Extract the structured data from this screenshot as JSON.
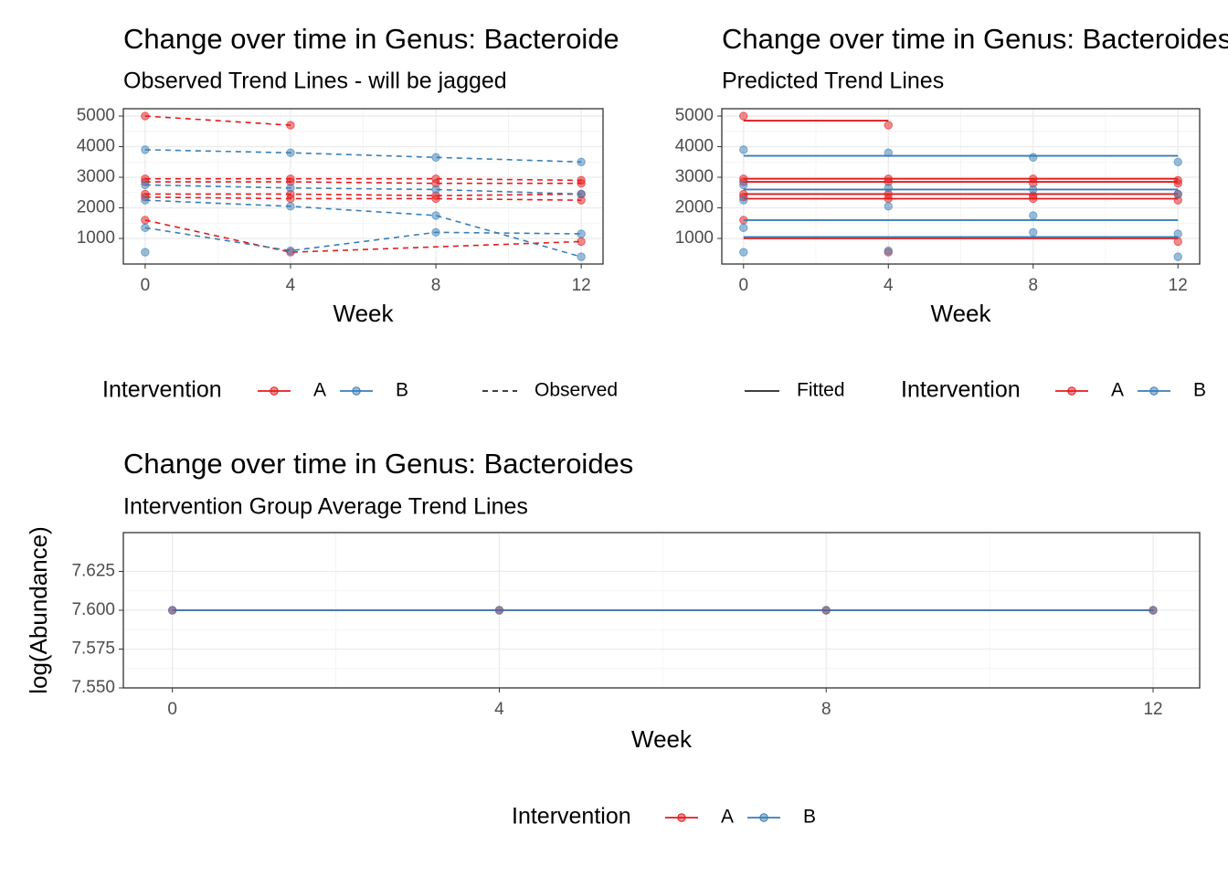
{
  "chart_data": [
    {
      "type": "line",
      "title": "Change over time in Genus: Bacteroides",
      "subtitle": "Observed Trend Lines - will be jagged",
      "xlabel": "Week",
      "legend_title": "Intervention",
      "linetype_label": "Observed",
      "linestyle": "dashed",
      "xlim": [
        -0.6,
        12.6
      ],
      "ylim": [
        165,
        5240
      ],
      "xticks": [
        0,
        4,
        8,
        12
      ],
      "yticks": [
        1000,
        2000,
        3000,
        4000,
        5000
      ],
      "grid": true,
      "series": [
        {
          "name": "A",
          "color": "#E41A1C",
          "lines": [
            {
              "x": [
                0,
                4
              ],
              "values": [
                5000,
                4700
              ]
            },
            {
              "x": [
                0,
                4,
                8,
                12
              ],
              "values": [
                2950,
                2950,
                2950,
                2900
              ]
            },
            {
              "x": [
                0,
                4,
                8,
                12
              ],
              "values": [
                2850,
                2850,
                2800,
                2800
              ]
            },
            {
              "x": [
                0,
                4,
                8,
                12
              ],
              "values": [
                2450,
                2450,
                2400,
                2450
              ]
            },
            {
              "x": [
                0,
                4,
                8,
                12
              ],
              "values": [
                2350,
                2300,
                2300,
                2250
              ]
            },
            {
              "x": [
                0,
                4,
                12
              ],
              "values": [
                1600,
                550,
                900
              ]
            }
          ]
        },
        {
          "name": "B",
          "color": "#377EB8",
          "lines": [
            {
              "x": [
                0,
                4,
                8,
                12
              ],
              "values": [
                3900,
                3800,
                3650,
                3500
              ]
            },
            {
              "x": [
                0,
                4,
                8,
                12
              ],
              "values": [
                2750,
                2650,
                2600,
                2450
              ]
            },
            {
              "x": [
                0,
                4,
                8,
                12
              ],
              "values": [
                2250,
                2050,
                1750,
                400
              ]
            },
            {
              "x": [
                0,
                4,
                8,
                12
              ],
              "values": [
                1350,
                600,
                1200,
                1150
              ]
            },
            {
              "x": [
                0
              ],
              "values": [
                550
              ]
            }
          ]
        }
      ]
    },
    {
      "type": "line",
      "title": "Change over time in Genus: Bacteroides",
      "subtitle": "Predicted Trend Lines",
      "xlabel": "Week",
      "legend_title": "Intervention",
      "linetype_label": "Fitted",
      "linestyle": "solid",
      "xlim": [
        -0.6,
        12.6
      ],
      "ylim": [
        165,
        5240
      ],
      "xticks": [
        0,
        4,
        8,
        12
      ],
      "yticks": [
        1000,
        2000,
        3000,
        4000,
        5000
      ],
      "grid": true,
      "series": [
        {
          "name": "A",
          "color": "#E41A1C",
          "lines": [
            {
              "x": [
                0,
                4
              ],
              "values": [
                5000,
                4700
              ],
              "fitted": 4850
            },
            {
              "x": [
                0,
                4,
                8,
                12
              ],
              "values": [
                2950,
                2950,
                2950,
                2900
              ],
              "fitted": 2950
            },
            {
              "x": [
                0,
                4,
                8,
                12
              ],
              "values": [
                2850,
                2850,
                2800,
                2800
              ],
              "fitted": 2850
            },
            {
              "x": [
                0,
                4,
                8,
                12
              ],
              "values": [
                2450,
                2450,
                2400,
                2450
              ],
              "fitted": 2450
            },
            {
              "x": [
                0,
                4,
                8,
                12
              ],
              "values": [
                2350,
                2300,
                2300,
                2250
              ],
              "fitted": 2300
            },
            {
              "x": [
                0,
                4,
                12
              ],
              "values": [
                1600,
                550,
                900
              ],
              "fitted": 1000
            }
          ]
        },
        {
          "name": "B",
          "color": "#377EB8",
          "lines": [
            {
              "x": [
                0,
                4,
                8,
                12
              ],
              "values": [
                3900,
                3800,
                3650,
                3500
              ],
              "fitted": 3700
            },
            {
              "x": [
                0,
                4,
                8,
                12
              ],
              "values": [
                2750,
                2650,
                2600,
                2450
              ],
              "fitted": 2600
            },
            {
              "x": [
                0,
                4,
                8,
                12
              ],
              "values": [
                2250,
                2050,
                1750,
                400
              ],
              "fitted": 1600
            },
            {
              "x": [
                0,
                4,
                8,
                12
              ],
              "values": [
                1350,
                600,
                1200,
                1150
              ],
              "fitted": 1050
            },
            {
              "x": [
                0
              ],
              "values": [
                550
              ]
            }
          ]
        }
      ]
    },
    {
      "type": "line",
      "title": "Change over time in Genus: Bacteroides",
      "subtitle": "Intervention Group Average Trend Lines",
      "xlabel": "Week",
      "ylabel": "log(Abundance)",
      "legend_title": "Intervention",
      "xlim": [
        -0.6,
        12.57
      ],
      "ylim": [
        7.55,
        7.65
      ],
      "xticks": [
        0,
        4,
        8,
        12
      ],
      "yticks": [
        {
          "value": 7.55,
          "label": "7.550"
        },
        7.575,
        {
          "value": 7.6,
          "label": "7.600"
        },
        7.625
      ],
      "grid": true,
      "x": [
        0,
        4,
        8,
        12
      ],
      "series": [
        {
          "name": "A",
          "color": "#E41A1C",
          "values": [
            7.6,
            7.6,
            7.6,
            7.6
          ]
        },
        {
          "name": "B",
          "color": "#377EB8",
          "values": [
            7.6,
            7.6,
            7.6,
            7.6
          ]
        }
      ]
    }
  ]
}
